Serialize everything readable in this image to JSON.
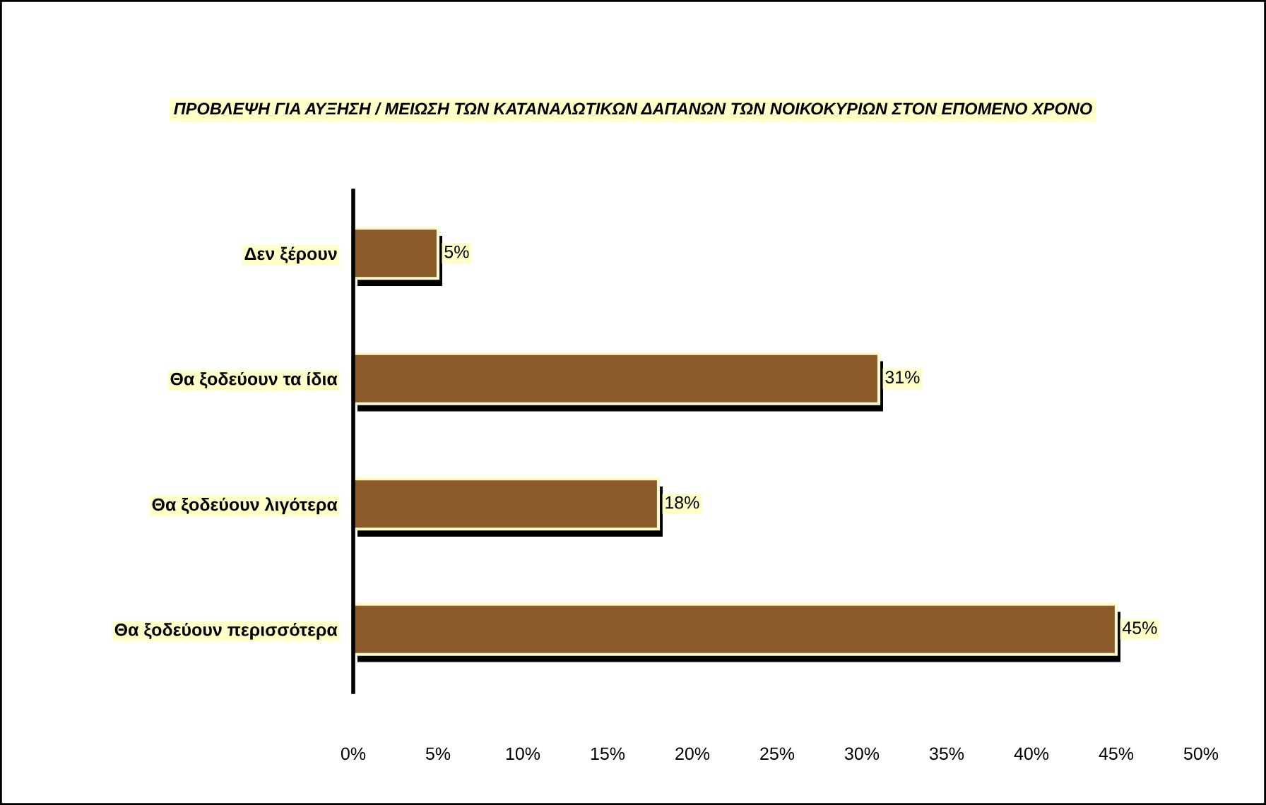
{
  "chart_data": {
    "type": "bar",
    "orientation": "horizontal",
    "title": "ΠΡΟΒΛΕΨΗ ΓΙΑ ΑΥΞΗΣΗ / ΜΕΙΩΣΗ ΤΩΝ ΚΑΤΑΝΑΛΩΤΙΚΩΝ ΔΑΠΑΝΩΝ ΤΩΝ ΝΟΙΚΟΚΥΡΙΩΝ ΣΤΟΝ ΕΠΟΜΕΝΟ ΧΡΟΝΟ",
    "categories": [
      "Δεν ξέρουν",
      "Θα ξοδεύουν τα ίδια",
      "Θα ξοδεύουν λιγότερα",
      "Θα ξοδεύουν περισσότερα"
    ],
    "values": [
      5,
      31,
      18,
      45
    ],
    "value_labels": [
      "5%",
      "31%",
      "18%",
      "45%"
    ],
    "color": "#8b5a2b",
    "xlim": [
      0,
      50
    ],
    "xticks": [
      {
        "value": 0,
        "label": "0%"
      },
      {
        "value": 5,
        "label": "5%"
      },
      {
        "value": 10,
        "label": "10%"
      },
      {
        "value": 15,
        "label": "15%"
      },
      {
        "value": 20,
        "label": "20%"
      },
      {
        "value": 25,
        "label": "25%"
      },
      {
        "value": 30,
        "label": "30%"
      },
      {
        "value": 35,
        "label": "35%"
      },
      {
        "value": 40,
        "label": "40%"
      },
      {
        "value": 45,
        "label": "45%"
      },
      {
        "value": 50,
        "label": "50%"
      }
    ],
    "grid": false
  }
}
